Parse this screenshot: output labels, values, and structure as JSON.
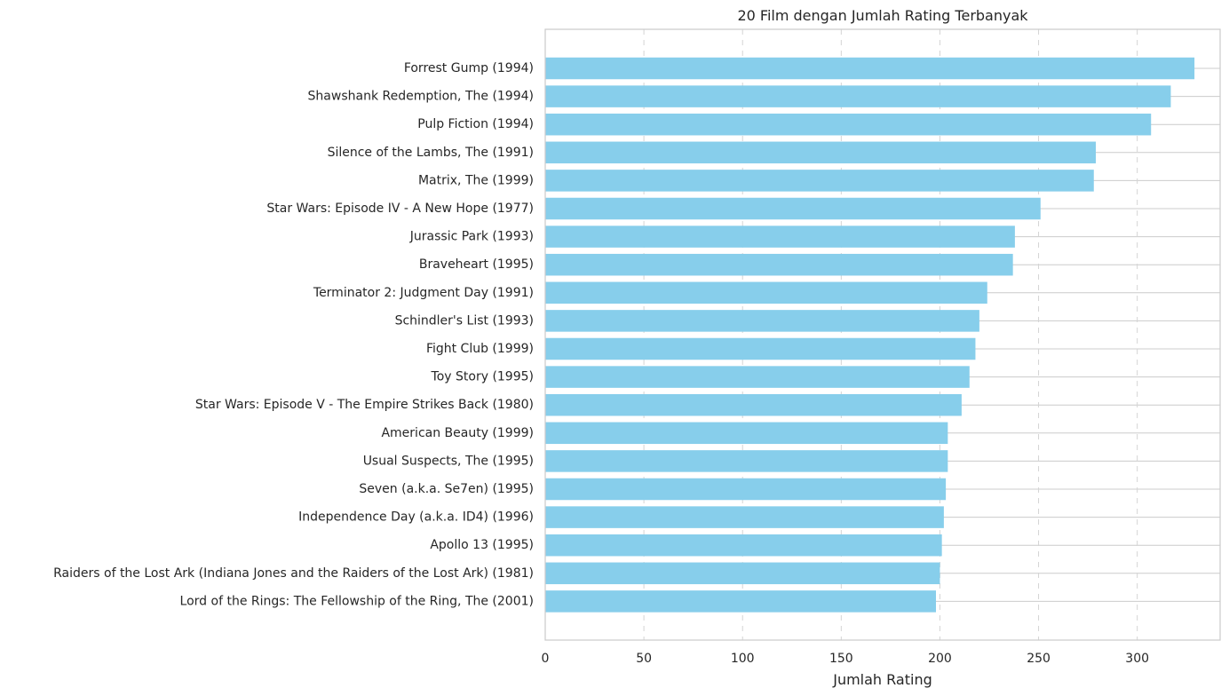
{
  "chart_data": {
    "type": "bar",
    "orientation": "horizontal",
    "title": "20 Film dengan Jumlah Rating Terbanyak",
    "xlabel": "Jumlah Rating",
    "ylabel": "",
    "xlim": [
      0,
      342
    ],
    "x_ticks": [
      0,
      50,
      100,
      150,
      200,
      250,
      300
    ],
    "grid": {
      "x": "dashed",
      "y": "solid"
    },
    "bar_color": "#87CEEB",
    "categories": [
      "Forrest Gump (1994)",
      "Shawshank Redemption, The (1994)",
      "Pulp Fiction (1994)",
      "Silence of the Lambs, The (1991)",
      "Matrix, The (1999)",
      "Star Wars: Episode IV - A New Hope (1977)",
      "Jurassic Park (1993)",
      "Braveheart (1995)",
      "Terminator 2: Judgment Day (1991)",
      "Schindler's List (1993)",
      "Fight Club (1999)",
      "Toy Story (1995)",
      "Star Wars: Episode V - The Empire Strikes Back (1980)",
      "American Beauty (1999)",
      "Usual Suspects, The (1995)",
      "Seven (a.k.a. Se7en) (1995)",
      "Independence Day (a.k.a. ID4) (1996)",
      "Apollo 13 (1995)",
      "Raiders of the Lost Ark (Indiana Jones and the Raiders of the Lost Ark) (1981)",
      "Lord of the Rings: The Fellowship of the Ring, The (2001)"
    ],
    "values": [
      329,
      317,
      307,
      279,
      278,
      251,
      238,
      237,
      224,
      220,
      218,
      215,
      211,
      204,
      204,
      203,
      202,
      201,
      200,
      198
    ]
  }
}
